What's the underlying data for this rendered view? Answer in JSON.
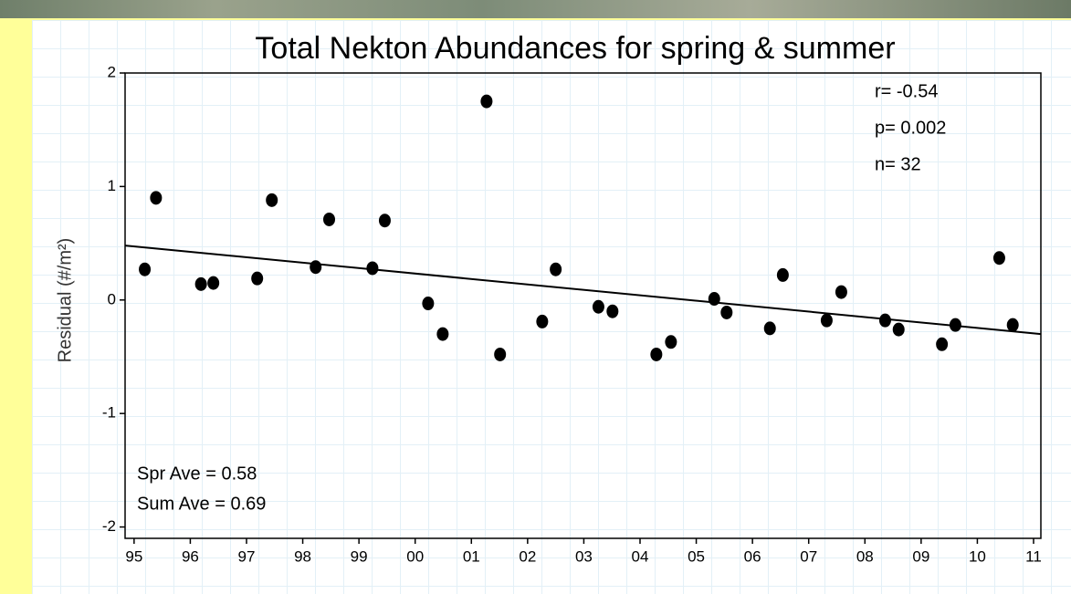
{
  "chart_data": {
    "type": "scatter",
    "title": "Total Nekton Abundances for spring & summer",
    "y_label": "Residual (#/m²)",
    "annotations": [
      "r= -0.54",
      "p= 0.002",
      "n=  32",
      "Spr Ave = 0.58",
      "Sum Ave = 0.69"
    ],
    "color": "#000000",
    "x": [
      1995.19,
      1995.39,
      1996.19,
      1996.41,
      1997.19,
      1997.45,
      1998.23,
      1998.47,
      1999.24,
      1999.46,
      2000.23,
      2000.49,
      2001.27,
      2001.51,
      2002.26,
      2002.5,
      2003.26,
      2003.51,
      2004.29,
      2004.55,
      2005.32,
      2005.54,
      2006.31,
      2006.54,
      2007.32,
      2007.58,
      2008.36,
      2008.6,
      2009.37,
      2009.61,
      2010.39,
      2010.63
    ],
    "values": [
      0.27,
      0.9,
      0.14,
      0.15,
      0.19,
      0.88,
      0.29,
      0.71,
      0.28,
      0.7,
      -0.03,
      -0.3,
      1.75,
      -0.48,
      -0.19,
      0.27,
      -0.06,
      -0.1,
      -0.48,
      -0.37,
      0.01,
      -0.11,
      -0.25,
      0.22,
      -0.18,
      0.07,
      -0.18,
      -0.26,
      -0.39,
      -0.22,
      0.37,
      -0.22
    ],
    "trendline": {
      "x": [
        1994.84,
        2011.13
      ],
      "values": [
        0.48,
        -0.3
      ],
      "color": "#000000"
    },
    "xlim": [
      1994.84,
      2011.13
    ],
    "xticks": [
      {
        "value": 1995,
        "label": "95"
      },
      {
        "value": 1996,
        "label": "96"
      },
      {
        "value": 1997,
        "label": "97"
      },
      {
        "value": 1998,
        "label": "98"
      },
      {
        "value": 1999,
        "label": "99"
      },
      {
        "value": 2000,
        "label": "00"
      },
      {
        "value": 2001,
        "label": "01"
      },
      {
        "value": 2002,
        "label": "02"
      },
      {
        "value": 2003,
        "label": "03"
      },
      {
        "value": 2004,
        "label": "04"
      },
      {
        "value": 2005,
        "label": "05"
      },
      {
        "value": 2006,
        "label": "06"
      },
      {
        "value": 2007,
        "label": "07"
      },
      {
        "value": 2008,
        "label": "08"
      },
      {
        "value": 2009,
        "label": "09"
      },
      {
        "value": 2010,
        "label": "10"
      },
      {
        "value": 2011,
        "label": "11"
      }
    ],
    "ylim": [
      -2.1,
      2
    ],
    "yticks": [
      -2,
      -1,
      0,
      1,
      2
    ]
  }
}
